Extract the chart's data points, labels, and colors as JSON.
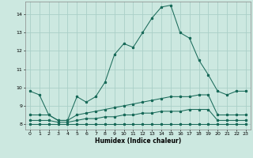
{
  "xlabel": "Humidex (Indice chaleur)",
  "xlim": [
    -0.5,
    23.5
  ],
  "ylim": [
    7.7,
    14.7
  ],
  "yticks": [
    8,
    9,
    10,
    11,
    12,
    13,
    14
  ],
  "xticks": [
    0,
    1,
    2,
    3,
    4,
    5,
    6,
    7,
    8,
    9,
    10,
    11,
    12,
    13,
    14,
    15,
    16,
    17,
    18,
    19,
    20,
    21,
    22,
    23
  ],
  "bg_color": "#cce8e0",
  "grid_color": "#aacfc8",
  "line_color": "#1a6b5a",
  "series1_y": [
    9.8,
    9.6,
    8.5,
    8.2,
    8.2,
    9.5,
    9.2,
    9.5,
    10.3,
    11.8,
    12.4,
    12.2,
    13.0,
    13.8,
    14.4,
    14.5,
    13.0,
    12.7,
    11.5,
    10.7,
    9.8,
    9.6,
    9.8,
    9.8
  ],
  "series2_y": [
    8.5,
    8.5,
    8.5,
    8.2,
    8.2,
    8.5,
    8.6,
    8.7,
    8.8,
    8.9,
    9.0,
    9.1,
    9.2,
    9.3,
    9.4,
    9.5,
    9.5,
    9.5,
    9.6,
    9.6,
    8.5,
    8.5,
    8.5,
    8.5
  ],
  "series3_y": [
    8.2,
    8.2,
    8.2,
    8.1,
    8.1,
    8.2,
    8.3,
    8.3,
    8.4,
    8.4,
    8.5,
    8.5,
    8.6,
    8.6,
    8.7,
    8.7,
    8.7,
    8.8,
    8.8,
    8.8,
    8.2,
    8.2,
    8.2,
    8.2
  ],
  "series4_y": [
    8.0,
    8.0,
    8.0,
    8.0,
    8.0,
    8.0,
    8.0,
    8.0,
    8.0,
    8.0,
    8.0,
    8.0,
    8.0,
    8.0,
    8.0,
    8.0,
    8.0,
    8.0,
    8.0,
    8.0,
    8.0,
    8.0,
    8.0,
    8.0
  ]
}
